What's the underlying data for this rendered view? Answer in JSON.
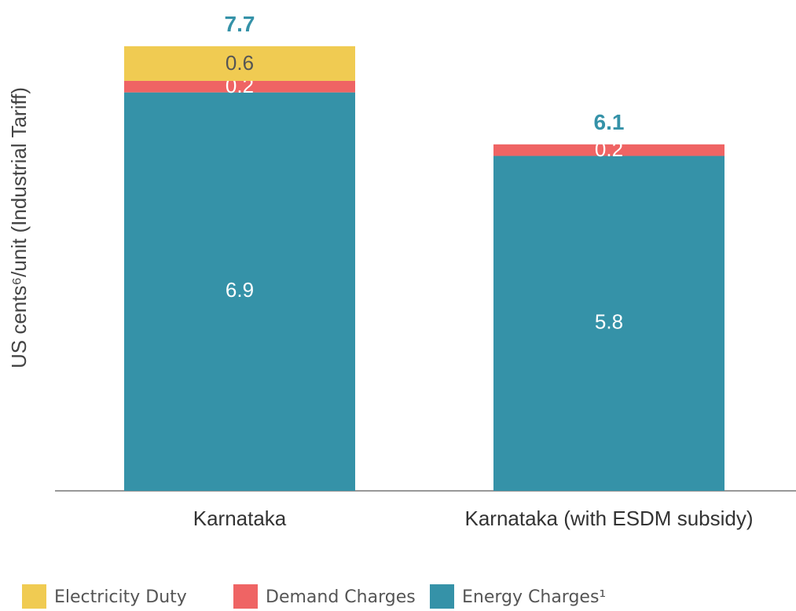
{
  "chart_data": {
    "type": "stacked_bar",
    "y_label": "US cents⁶/unit (Industrial Tariff)",
    "categories": [
      "Karnataka",
      "Karnataka (with ESDM subsidy)"
    ],
    "series": [
      {
        "name": "Energy Charges¹",
        "color": "#3592a8",
        "values": [
          6.9,
          5.8
        ]
      },
      {
        "name": "Demand Charges",
        "color": "#ef6464",
        "values": [
          0.2,
          0.2
        ]
      },
      {
        "name": "Electricity Duty",
        "color": "#f0cb52",
        "values": [
          0.6,
          null
        ]
      }
    ],
    "totals": [
      7.7,
      6.1
    ],
    "ylim": [
      0,
      8.5
    ]
  }
}
